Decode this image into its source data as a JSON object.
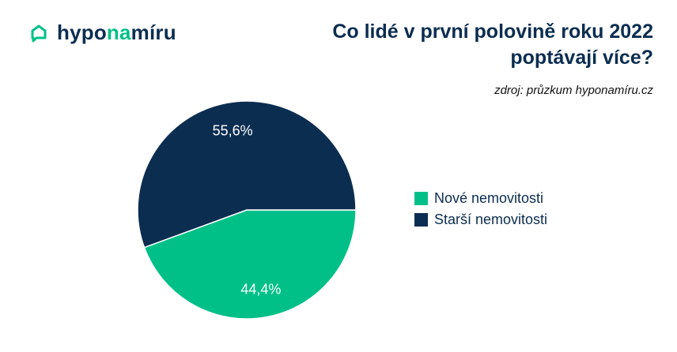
{
  "brand": {
    "text_pre": "hypo",
    "text_accent": "na",
    "text_post": "míru",
    "icon": "house-chat-icon",
    "colors": {
      "primary": "#0b2d50",
      "accent": "#00c088"
    }
  },
  "header": {
    "title_line1": "Co lidé v první polovině roku 2022",
    "title_line2": "poptávají více?",
    "source": "zdroj: průzkum hyponamíru.cz"
  },
  "chart_data": {
    "type": "pie",
    "categories": [
      "Nové nemovitosti",
      "Starší nemovitosti"
    ],
    "values": [
      44.4,
      55.6
    ],
    "value_labels": [
      "44,4%",
      "55,6%"
    ],
    "colors": [
      "#00c088",
      "#0b2d50"
    ],
    "legend_position": "right"
  }
}
